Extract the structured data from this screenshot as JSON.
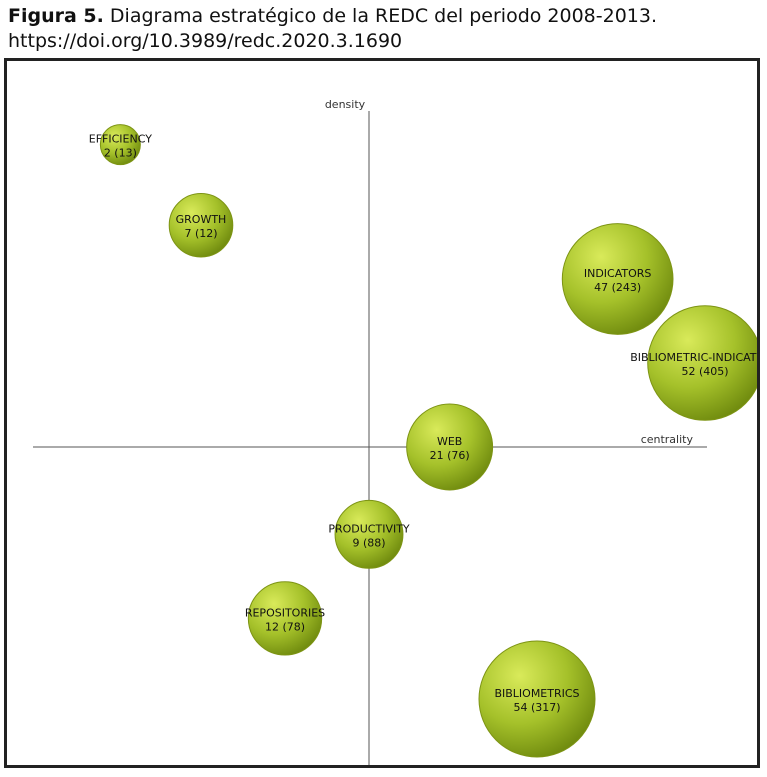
{
  "caption": {
    "lead": "Figura 5.",
    "text": "Diagrama estratégico de la REDC del periodo 2008-2013.",
    "link": "https://doi.org/10.3989/redc.2020.3.1690"
  },
  "colors": {
    "bubble_light": "#c6dc3a",
    "bubble_dark": "#6f8a0e",
    "bubble_stroke": "#7d9414",
    "axis": "#555555"
  },
  "chart_data": {
    "type": "scatter",
    "subtype": "strategic-diagram-bubbles",
    "xlabel": "centrality",
    "ylabel": "density",
    "grid": false,
    "points": [
      {
        "name": "EFFICIENCY",
        "documents": 2,
        "citations": 13,
        "centrality": -0.74,
        "density": 0.9
      },
      {
        "name": "GROWTH",
        "documents": 7,
        "citations": 12,
        "centrality": -0.5,
        "density": 0.66
      },
      {
        "name": "INDICATORS",
        "documents": 47,
        "citations": 243,
        "centrality": 0.74,
        "density": 0.5
      },
      {
        "name": "BIBLIOMETRIC-INDICATORS",
        "documents": 52,
        "citations": 405,
        "centrality": 1.0,
        "density": 0.25
      },
      {
        "name": "WEB",
        "documents": 21,
        "citations": 76,
        "centrality": 0.24,
        "density": 0.0
      },
      {
        "name": "PRODUCTIVITY",
        "documents": 9,
        "citations": 88,
        "centrality": 0.0,
        "density": -0.26
      },
      {
        "name": "REPOSITORIES",
        "documents": 12,
        "citations": 78,
        "centrality": -0.25,
        "density": -0.51
      },
      {
        "name": "BIBLIOMETRICS",
        "documents": 54,
        "citations": 317,
        "centrality": 0.5,
        "density": -0.75
      }
    ]
  }
}
